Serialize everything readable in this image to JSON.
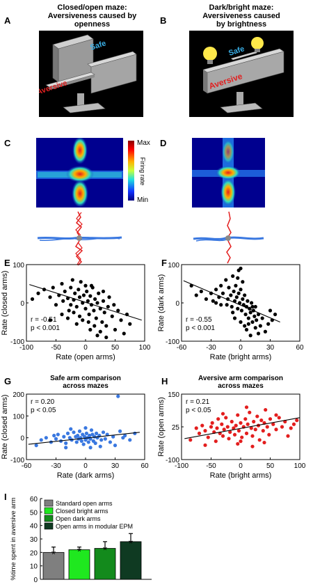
{
  "panels": {
    "A": {
      "label": "A",
      "title": [
        "Closed/open maze:",
        "Aversiveness caused by",
        "openness"
      ],
      "safe": "Safe",
      "aversive": "Aversive"
    },
    "B": {
      "label": "B",
      "title": [
        "Dark/bright maze:",
        "Aversiveness caused",
        "by brightness"
      ],
      "safe": "Safe",
      "aversive": "Aversive"
    },
    "C": {
      "label": "C"
    },
    "D": {
      "label": "D"
    },
    "colorbar": {
      "max": "Max",
      "min": "Min",
      "label": "Firing rate"
    },
    "E": {
      "label": "E",
      "ylabel": "Rate (closed arms)",
      "xlabel": "Rate (open arms)",
      "r": "r = -0.51",
      "p": "p < 0.001",
      "xticks": [
        "-100",
        "-50",
        "0",
        "50",
        "100"
      ],
      "yticks": [
        "100",
        "0",
        "-100"
      ]
    },
    "F": {
      "label": "F",
      "ylabel": "Rate (dark arms)",
      "xlabel": "Rate (bright arms)",
      "r": "r = -0.55",
      "p": "p < 0.001",
      "xticks": [
        "-60",
        "-30",
        "0",
        "30",
        "60"
      ],
      "yticks": [
        "100",
        "0",
        "-100"
      ]
    },
    "G": {
      "label": "G",
      "title": [
        "Safe arm comparison",
        "across mazes"
      ],
      "ylabel": "Rate (closed arms)",
      "xlabel": "Rate (dark arms)",
      "r": "r = 0.20",
      "p": "p < 0.05",
      "xticks": [
        "-60",
        "-30",
        "0",
        "30",
        "60"
      ],
      "yticks": [
        "200",
        "100",
        "0",
        "-100"
      ]
    },
    "H": {
      "label": "H",
      "title": [
        "Aversive arm comparison",
        "across mazes"
      ],
      "ylabel": "Rate (open arms)",
      "xlabel": "Rate (bright arms)",
      "r": "r = 0.21",
      "p": "p < 0.05",
      "xticks": [
        "-100",
        "-50",
        "0",
        "50",
        "100"
      ],
      "yticks": [
        "150",
        "25",
        "-100"
      ]
    },
    "I": {
      "label": "I",
      "ylabel": "%time spent in aversive arm",
      "yticks": [
        "60",
        "50",
        "40",
        "30",
        "20",
        "10",
        "0"
      ]
    }
  },
  "colors": {
    "safe_text": "#3ab0e8",
    "aversive_text": "#e02020",
    "red": "#e31e1e",
    "blue": "#3a78e0",
    "bar1": "#7f7f7f",
    "bar2": "#1fe81f",
    "bar3": "#138a1c",
    "bar4": "#0f3a22"
  },
  "chart_data": [
    {
      "type": "scatter",
      "panel": "E",
      "xlim": [
        -100,
        100
      ],
      "ylim": [
        -100,
        100
      ],
      "fit": {
        "x1": -95,
        "y1": 48,
        "x2": 95,
        "y2": -45
      },
      "points": [
        [
          -90,
          10
        ],
        [
          -80,
          25
        ],
        [
          -70,
          35
        ],
        [
          -60,
          15
        ],
        [
          -55,
          40
        ],
        [
          -50,
          -5
        ],
        [
          -45,
          20
        ],
        [
          -40,
          50
        ],
        [
          -38,
          5
        ],
        [
          -35,
          30
        ],
        [
          -30,
          12
        ],
        [
          -28,
          -20
        ],
        [
          -25,
          40
        ],
        [
          -22,
          60
        ],
        [
          -20,
          8
        ],
        [
          -18,
          25
        ],
        [
          -15,
          -10
        ],
        [
          -12,
          35
        ],
        [
          -10,
          15
        ],
        [
          -8,
          55
        ],
        [
          -5,
          0
        ],
        [
          -3,
          20
        ],
        [
          0,
          -15
        ],
        [
          2,
          30
        ],
        [
          4,
          5
        ],
        [
          6,
          -30
        ],
        [
          8,
          18
        ],
        [
          10,
          -5
        ],
        [
          12,
          40
        ],
        [
          14,
          -20
        ],
        [
          16,
          10
        ],
        [
          18,
          -40
        ],
        [
          20,
          0
        ],
        [
          22,
          25
        ],
        [
          25,
          -15
        ],
        [
          28,
          -50
        ],
        [
          30,
          5
        ],
        [
          32,
          -25
        ],
        [
          35,
          -60
        ],
        [
          38,
          -10
        ],
        [
          40,
          15
        ],
        [
          45,
          -35
        ],
        [
          48,
          -5
        ],
        [
          50,
          -70
        ],
        [
          55,
          -20
        ],
        [
          60,
          -45
        ],
        [
          65,
          -80
        ],
        [
          70,
          -30
        ],
        [
          75,
          -55
        ],
        [
          -60,
          -45
        ],
        [
          -30,
          -40
        ],
        [
          -10,
          -35
        ],
        [
          0,
          45
        ],
        [
          10,
          45
        ],
        [
          -20,
          -25
        ],
        [
          5,
          -50
        ],
        [
          15,
          -60
        ],
        [
          25,
          -75
        ],
        [
          -40,
          -30
        ],
        [
          30,
          30
        ],
        [
          -5,
          -45
        ],
        [
          20,
          -85
        ],
        [
          -15,
          -55
        ],
        [
          8,
          -70
        ],
        [
          -25,
          -5
        ],
        [
          35,
          -90
        ]
      ]
    },
    {
      "type": "scatter",
      "panel": "F",
      "xlim": [
        -60,
        60
      ],
      "ylim": [
        -100,
        100
      ],
      "fit": {
        "x1": -58,
        "y1": 58,
        "x2": 40,
        "y2": -50
      },
      "points": [
        [
          -50,
          45
        ],
        [
          -45,
          20
        ],
        [
          -40,
          30
        ],
        [
          -35,
          10
        ],
        [
          -30,
          25
        ],
        [
          -28,
          5
        ],
        [
          -25,
          35
        ],
        [
          -22,
          15
        ],
        [
          -20,
          -5
        ],
        [
          -18,
          25
        ],
        [
          -15,
          60
        ],
        [
          -13,
          10
        ],
        [
          -12,
          40
        ],
        [
          -10,
          20
        ],
        [
          -9,
          -10
        ],
        [
          -8,
          70
        ],
        [
          -7,
          30
        ],
        [
          -6,
          5
        ],
        [
          -5,
          45
        ],
        [
          -4,
          15
        ],
        [
          -3,
          -15
        ],
        [
          -2,
          25
        ],
        [
          -1,
          0
        ],
        [
          0,
          35
        ],
        [
          1,
          -20
        ],
        [
          2,
          10
        ],
        [
          3,
          -5
        ],
        [
          4,
          20
        ],
        [
          5,
          -30
        ],
        [
          6,
          -10
        ],
        [
          7,
          5
        ],
        [
          8,
          -40
        ],
        [
          9,
          -15
        ],
        [
          10,
          -25
        ],
        [
          11,
          0
        ],
        [
          12,
          -50
        ],
        [
          13,
          -20
        ],
        [
          14,
          -35
        ],
        [
          15,
          -10
        ],
        [
          16,
          -45
        ],
        [
          18,
          -30
        ],
        [
          20,
          -60
        ],
        [
          22,
          -40
        ],
        [
          25,
          -75
        ],
        [
          28,
          -55
        ],
        [
          30,
          -20
        ],
        [
          32,
          -45
        ],
        [
          35,
          -30
        ],
        [
          -2,
          85
        ],
        [
          0,
          90
        ],
        [
          -3,
          65
        ],
        [
          2,
          55
        ],
        [
          -8,
          -25
        ],
        [
          -14,
          -5
        ],
        [
          4,
          -60
        ],
        [
          6,
          -70
        ],
        [
          10,
          -85
        ],
        [
          15,
          -65
        ],
        [
          -20,
          45
        ],
        [
          -25,
          0
        ],
        [
          -6,
          -40
        ],
        [
          0,
          -50
        ],
        [
          8,
          -55
        ],
        [
          12,
          -10
        ],
        [
          18,
          -80
        ]
      ]
    },
    {
      "type": "scatter",
      "panel": "G",
      "xlim": [
        -60,
        60
      ],
      "ylim": [
        -100,
        200
      ],
      "fit": {
        "x1": -58,
        "y1": -30,
        "x2": 55,
        "y2": 25
      },
      "points": [
        [
          -50,
          -35
        ],
        [
          -45,
          -10
        ],
        [
          -40,
          0
        ],
        [
          -35,
          -20
        ],
        [
          -32,
          10
        ],
        [
          -30,
          -5
        ],
        [
          -28,
          15
        ],
        [
          -25,
          -15
        ],
        [
          -22,
          5
        ],
        [
          -20,
          -25
        ],
        [
          -18,
          20
        ],
        [
          -16,
          0
        ],
        [
          -14,
          -10
        ],
        [
          -12,
          25
        ],
        [
          -10,
          5
        ],
        [
          -9,
          -20
        ],
        [
          -8,
          10
        ],
        [
          -7,
          -5
        ],
        [
          -6,
          30
        ],
        [
          -5,
          0
        ],
        [
          -4,
          -15
        ],
        [
          -3,
          15
        ],
        [
          -2,
          -30
        ],
        [
          -1,
          5
        ],
        [
          0,
          -10
        ],
        [
          1,
          20
        ],
        [
          2,
          0
        ],
        [
          3,
          -20
        ],
        [
          4,
          10
        ],
        [
          5,
          -5
        ],
        [
          6,
          35
        ],
        [
          7,
          15
        ],
        [
          8,
          -15
        ],
        [
          9,
          5
        ],
        [
          10,
          -25
        ],
        [
          11,
          20
        ],
        [
          12,
          0
        ],
        [
          14,
          10
        ],
        [
          16,
          -10
        ],
        [
          18,
          25
        ],
        [
          20,
          -5
        ],
        [
          22,
          15
        ],
        [
          25,
          -20
        ],
        [
          28,
          5
        ],
        [
          30,
          -35
        ],
        [
          33,
          190
        ],
        [
          35,
          30
        ],
        [
          38,
          0
        ],
        [
          40,
          10
        ],
        [
          45,
          -10
        ],
        [
          50,
          20
        ],
        [
          -15,
          40
        ],
        [
          5,
          -45
        ],
        [
          -20,
          -45
        ],
        [
          15,
          -40
        ],
        [
          0,
          45
        ]
      ]
    },
    {
      "type": "scatter",
      "panel": "H",
      "xlim": [
        -100,
        100
      ],
      "ylim": [
        -100,
        150
      ],
      "fit": {
        "x1": -95,
        "y1": -20,
        "x2": 100,
        "y2": 60
      },
      "points": [
        [
          -85,
          -25
        ],
        [
          -75,
          20
        ],
        [
          -70,
          0
        ],
        [
          -65,
          30
        ],
        [
          -60,
          10
        ],
        [
          -55,
          -15
        ],
        [
          -50,
          25
        ],
        [
          -48,
          40
        ],
        [
          -45,
          5
        ],
        [
          -42,
          -30
        ],
        [
          -40,
          20
        ],
        [
          -38,
          55
        ],
        [
          -35,
          0
        ],
        [
          -32,
          35
        ],
        [
          -30,
          -10
        ],
        [
          -28,
          15
        ],
        [
          -25,
          60
        ],
        [
          -22,
          25
        ],
        [
          -20,
          -20
        ],
        [
          -18,
          5
        ],
        [
          -15,
          45
        ],
        [
          -12,
          20
        ],
        [
          -10,
          -5
        ],
        [
          -8,
          30
        ],
        [
          -5,
          70
        ],
        [
          -3,
          10
        ],
        [
          0,
          40
        ],
        [
          2,
          -15
        ],
        [
          5,
          25
        ],
        [
          8,
          55
        ],
        [
          10,
          0
        ],
        [
          12,
          35
        ],
        [
          15,
          80
        ],
        [
          18,
          20
        ],
        [
          20,
          -10
        ],
        [
          22,
          45
        ],
        [
          25,
          15
        ],
        [
          28,
          65
        ],
        [
          30,
          30
        ],
        [
          32,
          -25
        ],
        [
          35,
          50
        ],
        [
          38,
          10
        ],
        [
          40,
          40
        ],
        [
          42,
          90
        ],
        [
          45,
          25
        ],
        [
          48,
          -5
        ],
        [
          50,
          55
        ],
        [
          55,
          35
        ],
        [
          60,
          15
        ],
        [
          65,
          60
        ],
        [
          70,
          25
        ],
        [
          75,
          45
        ],
        [
          80,
          -10
        ],
        [
          85,
          20
        ],
        [
          90,
          35
        ],
        [
          95,
          50
        ],
        [
          -5,
          -40
        ],
        [
          20,
          -50
        ],
        [
          0,
          -30
        ],
        [
          40,
          -35
        ],
        [
          -60,
          -45
        ],
        [
          60,
          70
        ],
        [
          -30,
          75
        ],
        [
          10,
          100
        ]
      ]
    },
    {
      "type": "bar",
      "panel": "I",
      "ylim": [
        0,
        60
      ],
      "categories": [
        "Standard open arms",
        "Closed bright arms",
        "Open dark arms",
        "Open arms in modular EPM"
      ],
      "values": [
        20,
        22,
        23,
        28
      ],
      "errors": [
        4,
        2,
        5,
        6
      ],
      "annotations": [
        "*",
        "*",
        "*",
        "*"
      ]
    }
  ]
}
